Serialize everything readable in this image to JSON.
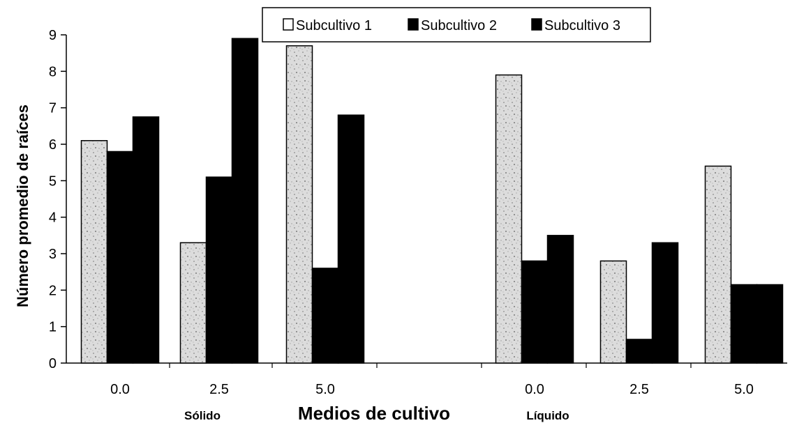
{
  "chart_data": {
    "type": "bar",
    "ylabel": "Número promedio de raíces",
    "xlabel": "Medios de cultivo",
    "ylim": [
      0,
      9
    ],
    "yticks": [
      "0",
      "1",
      "2",
      "3",
      "4",
      "5",
      "6",
      "7",
      "8",
      "9"
    ],
    "categories": [
      "0.0",
      "2.5",
      "5.0",
      "0.0",
      "2.5",
      "5.0"
    ],
    "groups": [
      {
        "label": "Sólido",
        "categories": [
          "0.0",
          "2.5",
          "5.0"
        ]
      },
      {
        "label": "Líquido",
        "categories": [
          "0.0",
          "2.5",
          "5.0"
        ]
      }
    ],
    "series": [
      {
        "name": "Subcultivo 1",
        "values": [
          6.1,
          3.3,
          8.7,
          7.9,
          2.8,
          5.4
        ],
        "color": "#e6e6e6",
        "pattern": "speckled"
      },
      {
        "name": "Subcultivo 2",
        "values": [
          5.8,
          5.1,
          2.6,
          2.8,
          0.65,
          2.15
        ],
        "color": "#000000"
      },
      {
        "name": "Subcultivo 3",
        "values": [
          6.75,
          8.9,
          6.8,
          3.5,
          3.3,
          2.15
        ],
        "color": "#000000"
      }
    ],
    "legend": "top-center",
    "grid": false
  }
}
